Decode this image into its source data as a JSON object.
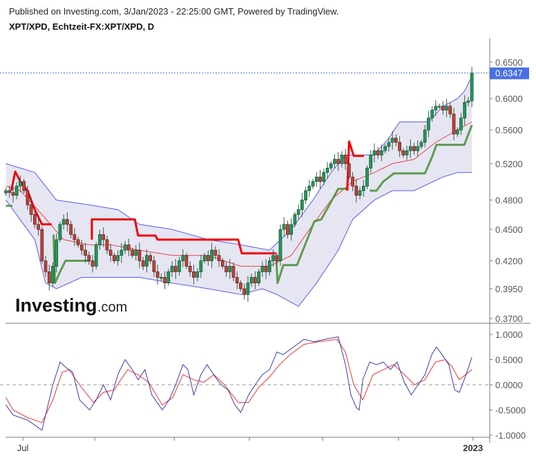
{
  "header": {
    "published": "Published on Investing.com, 3/Jan/2023 - 22:25:00 GMT, Powered by TradingView.",
    "symbol": "XPT/XPD, Echtzeit-FX:XPT/XPD, D"
  },
  "logo": {
    "text": "Investing",
    "suffix": ".com"
  },
  "colors": {
    "up": "#1e9a5a",
    "down": "#c0433a",
    "band": "#5a5ae8",
    "band_fill": "#e6e6f2",
    "ma": "#e8454a",
    "stop_red": "#ee0000",
    "stop_green": "#5e9a50",
    "osc_fast": "#3b3bb0",
    "osc_slow": "#ee3333",
    "last_price": "#4a6fe3"
  },
  "chart_data": [
    {
      "type": "candlestick",
      "yscale": "log",
      "ylim": [
        0.365,
        0.665
      ],
      "yticks": [
        "0.6500",
        "0.6000",
        "0.5600",
        "0.5200",
        "0.4800",
        "0.4500",
        "0.4200",
        "0.3950",
        "0.3700"
      ],
      "last_price": "0.6347",
      "xticks": [
        {
          "i": 4.7,
          "label": "Jul"
        },
        {
          "i": 24.6,
          "label": ""
        },
        {
          "i": 46.6,
          "label": ""
        },
        {
          "i": 67.4,
          "label": ""
        },
        {
          "i": 87.7,
          "label": ""
        },
        {
          "i": 108.7,
          "label": ""
        },
        {
          "i": 129.3,
          "label": "2023"
        }
      ],
      "close": [
        0.49,
        0.488,
        0.485,
        0.495,
        0.5,
        0.49,
        0.475,
        0.465,
        0.455,
        0.45,
        0.42,
        0.41,
        0.4,
        0.415,
        0.44,
        0.455,
        0.46,
        0.455,
        0.445,
        0.44,
        0.435,
        0.43,
        0.425,
        0.42,
        0.415,
        0.435,
        0.445,
        0.44,
        0.43,
        0.425,
        0.42,
        0.425,
        0.43,
        0.435,
        0.43,
        0.425,
        0.43,
        0.42,
        0.415,
        0.425,
        0.42,
        0.41,
        0.405,
        0.405,
        0.4,
        0.41,
        0.415,
        0.41,
        0.42,
        0.425,
        0.415,
        0.41,
        0.405,
        0.41,
        0.42,
        0.425,
        0.42,
        0.43,
        0.425,
        0.42,
        0.415,
        0.41,
        0.415,
        0.405,
        0.4,
        0.395,
        0.39,
        0.4,
        0.405,
        0.4,
        0.41,
        0.415,
        0.41,
        0.42,
        0.425,
        0.42,
        0.45,
        0.455,
        0.445,
        0.455,
        0.465,
        0.47,
        0.48,
        0.49,
        0.495,
        0.5,
        0.505,
        0.5,
        0.51,
        0.515,
        0.52,
        0.525,
        0.52,
        0.53,
        0.52,
        0.505,
        0.495,
        0.485,
        0.49,
        0.495,
        0.515,
        0.53,
        0.535,
        0.53,
        0.535,
        0.54,
        0.545,
        0.55,
        0.545,
        0.535,
        0.53,
        0.535,
        0.54,
        0.535,
        0.54,
        0.545,
        0.56,
        0.575,
        0.585,
        0.59,
        0.59,
        0.585,
        0.59,
        0.58,
        0.555,
        0.56,
        0.575,
        0.595,
        0.597,
        0.6347
      ],
      "bollinger_upper": [
        [
          0,
          0.52
        ],
        [
          8,
          0.51
        ],
        [
          14,
          0.48
        ],
        [
          23,
          0.475
        ],
        [
          31,
          0.47
        ],
        [
          37,
          0.455
        ],
        [
          46,
          0.45
        ],
        [
          56,
          0.44
        ],
        [
          65,
          0.435
        ],
        [
          73,
          0.43
        ],
        [
          79,
          0.45
        ],
        [
          85,
          0.48
        ],
        [
          90,
          0.51
        ],
        [
          94,
          0.53
        ],
        [
          98,
          0.53
        ],
        [
          102,
          0.53
        ],
        [
          106,
          0.55
        ],
        [
          109,
          0.57
        ],
        [
          113,
          0.57
        ],
        [
          117,
          0.57
        ],
        [
          121,
          0.59
        ],
        [
          125,
          0.6
        ],
        [
          127,
          0.61
        ],
        [
          129,
          0.63
        ]
      ],
      "bollinger_lower": [
        [
          0,
          0.48
        ],
        [
          8,
          0.44
        ],
        [
          11,
          0.4
        ],
        [
          14,
          0.395
        ],
        [
          21,
          0.405
        ],
        [
          27,
          0.405
        ],
        [
          37,
          0.405
        ],
        [
          46,
          0.4
        ],
        [
          56,
          0.395
        ],
        [
          65,
          0.39
        ],
        [
          71,
          0.395
        ],
        [
          75,
          0.39
        ],
        [
          81,
          0.38
        ],
        [
          86,
          0.4
        ],
        [
          92,
          0.43
        ],
        [
          96,
          0.46
        ],
        [
          102,
          0.48
        ],
        [
          107,
          0.49
        ],
        [
          113,
          0.49
        ],
        [
          121,
          0.505
        ],
        [
          125,
          0.51
        ],
        [
          129,
          0.51
        ]
      ],
      "moving_average": [
        [
          0,
          0.495
        ],
        [
          4,
          0.49
        ],
        [
          10,
          0.465
        ],
        [
          16,
          0.44
        ],
        [
          23,
          0.435
        ],
        [
          29,
          0.435
        ],
        [
          37,
          0.43
        ],
        [
          46,
          0.425
        ],
        [
          56,
          0.425
        ],
        [
          65,
          0.415
        ],
        [
          73,
          0.415
        ],
        [
          79,
          0.425
        ],
        [
          85,
          0.455
        ],
        [
          90,
          0.48
        ],
        [
          96,
          0.5
        ],
        [
          102,
          0.51
        ],
        [
          107,
          0.52
        ],
        [
          113,
          0.525
        ],
        [
          119,
          0.545
        ],
        [
          125,
          0.56
        ],
        [
          129,
          0.57
        ]
      ],
      "stop_red": [
        [
          [
            1.5,
            0.49
          ],
          [
            2.6,
            0.511
          ],
          [
            4,
            0.5
          ],
          [
            6,
            0.49
          ],
          [
            8,
            0.47
          ],
          [
            10,
            0.455
          ],
          [
            12.7,
            0.455
          ]
        ],
        [
          [
            23.8,
            0.44
          ],
          [
            23.8,
            0.46
          ],
          [
            35.7,
            0.46
          ],
          [
            36.6,
            0.444
          ],
          [
            41.4,
            0.444
          ],
          [
            42,
            0.44
          ],
          [
            64.3,
            0.44
          ],
          [
            65.3,
            0.427
          ],
          [
            74.8,
            0.427
          ]
        ],
        [
          [
            94.5,
            0.49
          ],
          [
            95,
            0.546
          ],
          [
            96.3,
            0.529
          ],
          [
            99.1,
            0.529
          ]
        ]
      ],
      "stop_green": [
        [
          [
            0,
            0.474
          ],
          [
            1.8,
            0.474
          ]
        ],
        [
          [
            13.2,
            0.445
          ],
          [
            13.6,
            0.4
          ],
          [
            15,
            0.41
          ],
          [
            16.5,
            0.42
          ],
          [
            23.2,
            0.42
          ]
        ],
        [
          [
            74.9,
            0.42
          ],
          [
            75.2,
            0.4
          ],
          [
            76.8,
            0.416
          ],
          [
            80.6,
            0.416
          ],
          [
            85.4,
            0.458
          ],
          [
            87.3,
            0.46
          ],
          [
            92,
            0.492
          ],
          [
            94.9,
            0.492
          ]
        ],
        [
          [
            100.7,
            0.49
          ],
          [
            102.6,
            0.49
          ],
          [
            104.5,
            0.5
          ],
          [
            107.4,
            0.509
          ],
          [
            116,
            0.509
          ],
          [
            117.9,
            0.527
          ],
          [
            119.2,
            0.542
          ],
          [
            126.9,
            0.542
          ],
          [
            129,
            0.566
          ]
        ]
      ]
    },
    {
      "type": "line",
      "ylim": [
        -1.0,
        1.0
      ],
      "yticks": [
        "1.0000",
        "0.5000",
        "0.0000",
        "-0.5000",
        "-1.0000"
      ],
      "zero_line": true,
      "fast": [
        [
          0,
          -0.4
        ],
        [
          2,
          -0.6
        ],
        [
          6,
          -0.7
        ],
        [
          10,
          -0.9
        ],
        [
          13,
          0
        ],
        [
          15,
          0.45
        ],
        [
          16.5,
          0.35
        ],
        [
          18.5,
          0.25
        ],
        [
          20.4,
          -0.3
        ],
        [
          23.2,
          -0.5
        ],
        [
          25,
          -0.3
        ],
        [
          27,
          0
        ],
        [
          29,
          -0.3
        ],
        [
          31,
          0.2
        ],
        [
          33,
          0.5
        ],
        [
          35,
          0.3
        ],
        [
          36.6,
          0.1
        ],
        [
          38.5,
          0.3
        ],
        [
          40.4,
          -0.2
        ],
        [
          43.3,
          -0.5
        ],
        [
          45.2,
          -0.3
        ],
        [
          47,
          0
        ],
        [
          49,
          0.4
        ],
        [
          50.4,
          0.3
        ],
        [
          52,
          -0.2
        ],
        [
          54,
          0.2
        ],
        [
          55.7,
          0.4
        ],
        [
          58,
          0.15
        ],
        [
          59.6,
          0
        ],
        [
          61.5,
          -0.1
        ],
        [
          63.4,
          -0.4
        ],
        [
          65,
          -0.55
        ],
        [
          67.2,
          -0.2
        ],
        [
          69,
          0
        ],
        [
          71,
          0.2
        ],
        [
          73,
          0.3
        ],
        [
          75,
          0.65
        ],
        [
          76.8,
          0.6
        ],
        [
          78.7,
          0.7
        ],
        [
          80.6,
          0.8
        ],
        [
          82.5,
          0.9
        ],
        [
          85.4,
          0.85
        ],
        [
          88.2,
          0.9
        ],
        [
          92,
          0.95
        ],
        [
          94,
          0.4
        ],
        [
          95.5,
          -0.2
        ],
        [
          97,
          -0.45
        ],
        [
          97.8,
          -0.5
        ],
        [
          98.8,
          0.1
        ],
        [
          100.7,
          0.45
        ],
        [
          102.6,
          0.4
        ],
        [
          104.5,
          0.45
        ],
        [
          106.4,
          0.3
        ],
        [
          108.3,
          0.45
        ],
        [
          110.3,
          0.05
        ],
        [
          112.2,
          -0.2
        ],
        [
          114.1,
          0
        ],
        [
          116,
          0.2
        ],
        [
          117.9,
          0.6
        ],
        [
          119.2,
          0.75
        ],
        [
          120.7,
          0.6
        ],
        [
          122.6,
          0.4
        ],
        [
          124.2,
          -0.1
        ],
        [
          125.5,
          -0.15
        ],
        [
          127.4,
          0.2
        ],
        [
          129,
          0.55
        ]
      ],
      "slow": [
        [
          0,
          -0.25
        ],
        [
          2,
          -0.5
        ],
        [
          6,
          -0.65
        ],
        [
          10,
          -0.75
        ],
        [
          13,
          -0.3
        ],
        [
          15.6,
          0.25
        ],
        [
          17.5,
          0.3
        ],
        [
          20.4,
          0
        ],
        [
          24.2,
          -0.35
        ],
        [
          27,
          -0.15
        ],
        [
          30,
          -0.1
        ],
        [
          33.7,
          0.3
        ],
        [
          36.6,
          0.2
        ],
        [
          39.5,
          0.05
        ],
        [
          43.3,
          -0.4
        ],
        [
          46.2,
          -0.25
        ],
        [
          49,
          0.2
        ],
        [
          52,
          0.1
        ],
        [
          54.8,
          0.05
        ],
        [
          57.6,
          0.2
        ],
        [
          60.5,
          0
        ],
        [
          64.3,
          -0.35
        ],
        [
          67.2,
          -0.35
        ],
        [
          70,
          -0.05
        ],
        [
          72.9,
          0.15
        ],
        [
          75.8,
          0.4
        ],
        [
          78.7,
          0.6
        ],
        [
          82.5,
          0.8
        ],
        [
          86.3,
          0.85
        ],
        [
          91.7,
          0.9
        ],
        [
          94,
          0.65
        ],
        [
          96.3,
          0
        ],
        [
          98.8,
          -0.3
        ],
        [
          101.6,
          0.2
        ],
        [
          104.5,
          0.3
        ],
        [
          107.4,
          0.4
        ],
        [
          110.3,
          0.2
        ],
        [
          113.1,
          0
        ],
        [
          116,
          0.1
        ],
        [
          118.9,
          0.45
        ],
        [
          121.7,
          0.5
        ],
        [
          123.6,
          0.35
        ],
        [
          125.5,
          0.1
        ],
        [
          129,
          0.3
        ]
      ]
    }
  ]
}
